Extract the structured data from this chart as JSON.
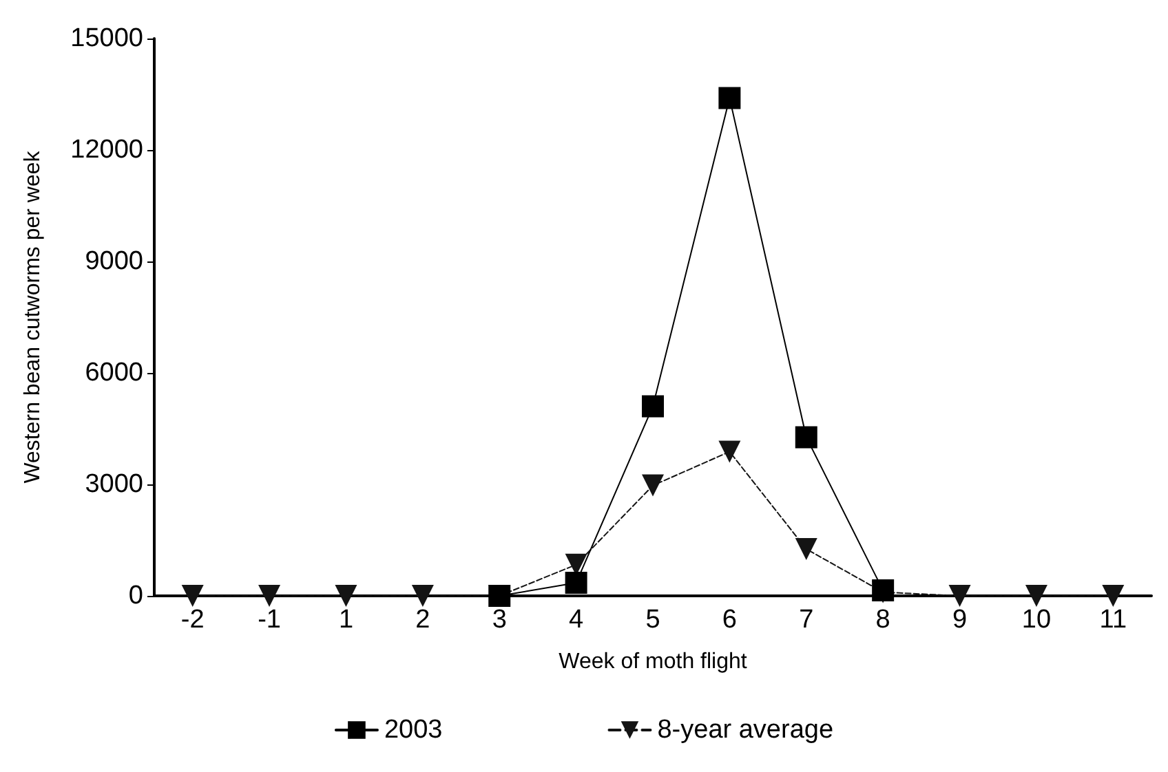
{
  "chart_data": {
    "type": "line",
    "xlabel": "Week of moth flight",
    "ylabel": "Western bean cutworms per week",
    "categories": [
      "-2",
      "-1",
      "1",
      "2",
      "3",
      "4",
      "5",
      "6",
      "7",
      "8",
      "9",
      "10",
      "11"
    ],
    "series": [
      {
        "name": "2003",
        "color": "#000000",
        "marker": "square",
        "line_style": "solid",
        "values": [
          null,
          null,
          null,
          null,
          0,
          350,
          5100,
          13400,
          4270,
          150,
          null,
          null,
          null
        ]
      },
      {
        "name": "8-year average",
        "color": "#141414",
        "marker": "triangle",
        "line_style": "dashed",
        "values": [
          0,
          0,
          0,
          0,
          0,
          840,
          2970,
          3880,
          1260,
          100,
          0,
          0,
          0
        ]
      }
    ],
    "ylim": [
      0,
      15000
    ],
    "yticks": [
      0,
      3000,
      6000,
      9000,
      12000,
      15000
    ],
    "grid": false,
    "legend": "bottom"
  }
}
